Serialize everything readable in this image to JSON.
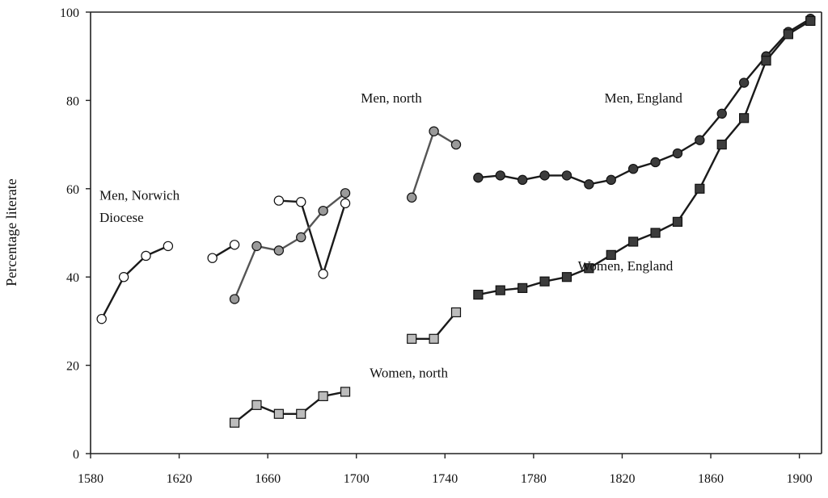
{
  "chart_data": {
    "type": "line",
    "title": "",
    "xlabel": "",
    "ylabel": "Percentage literate",
    "xlim": [
      1580,
      1910
    ],
    "ylim": [
      0,
      100
    ],
    "x_ticks": [
      1580,
      1620,
      1660,
      1700,
      1740,
      1780,
      1820,
      1860,
      1900
    ],
    "y_ticks": [
      0,
      20,
      40,
      60,
      80,
      100
    ],
    "grid": false,
    "legend": "none",
    "series": [
      {
        "name": "Men, Norwich Diocese",
        "marker": "circle",
        "marker_fill": "#ffffff",
        "line_color": "#1a1a1a",
        "segments": [
          [
            [
              1585,
              30.5
            ],
            [
              1595,
              40
            ],
            [
              1605,
              44.8
            ],
            [
              1615,
              47
            ]
          ],
          [
            [
              1635,
              44.3
            ],
            [
              1645,
              47.3
            ]
          ],
          [
            [
              1665,
              57.3
            ],
            [
              1675,
              57
            ],
            [
              1685,
              40.7
            ],
            [
              1695,
              56.7
            ]
          ]
        ]
      },
      {
        "name": "Men, north",
        "marker": "circle",
        "marker_fill": "#9a9a9a",
        "line_color": "#555555",
        "segments": [
          [
            [
              1645,
              35
            ],
            [
              1655,
              47
            ],
            [
              1665,
              46
            ],
            [
              1675,
              49
            ],
            [
              1685,
              55
            ],
            [
              1695,
              59
            ]
          ],
          [
            [
              1725,
              58
            ],
            [
              1735,
              73
            ],
            [
              1745,
              70
            ]
          ]
        ]
      },
      {
        "name": "Women, north",
        "marker": "square",
        "marker_fill": "#bcbcbc",
        "line_color": "#1a1a1a",
        "segments": [
          [
            [
              1645,
              7
            ],
            [
              1655,
              11
            ],
            [
              1665,
              9
            ],
            [
              1675,
              9
            ],
            [
              1685,
              13
            ],
            [
              1695,
              14
            ]
          ],
          [
            [
              1725,
              26
            ],
            [
              1735,
              26
            ],
            [
              1745,
              32
            ]
          ]
        ]
      },
      {
        "name": "Men, England",
        "marker": "circle",
        "marker_fill": "#3c3c3c",
        "line_color": "#1a1a1a",
        "segments": [
          [
            [
              1755,
              62.5
            ],
            [
              1765,
              63
            ],
            [
              1775,
              62
            ],
            [
              1785,
              63
            ],
            [
              1795,
              63
            ],
            [
              1805,
              61
            ],
            [
              1815,
              62
            ],
            [
              1825,
              64.5
            ],
            [
              1835,
              66
            ],
            [
              1845,
              68
            ],
            [
              1855,
              71
            ],
            [
              1865,
              77
            ],
            [
              1875,
              84
            ],
            [
              1885,
              90
            ],
            [
              1895,
              95.5
            ],
            [
              1905,
              98.5
            ]
          ]
        ]
      },
      {
        "name": "Women, England",
        "marker": "square",
        "marker_fill": "#3c3c3c",
        "line_color": "#1a1a1a",
        "segments": [
          [
            [
              1755,
              36
            ],
            [
              1765,
              37
            ],
            [
              1775,
              37.5
            ],
            [
              1785,
              39
            ],
            [
              1795,
              40
            ],
            [
              1805,
              42
            ],
            [
              1815,
              45
            ],
            [
              1825,
              48
            ],
            [
              1835,
              50
            ],
            [
              1845,
              52.5
            ],
            [
              1855,
              60
            ],
            [
              1865,
              70
            ],
            [
              1875,
              76
            ],
            [
              1885,
              89
            ],
            [
              1895,
              95
            ],
            [
              1905,
              98
            ]
          ]
        ]
      }
    ],
    "annotations": [
      {
        "text": "Men, Norwich",
        "x": 1584,
        "y": 57.5
      },
      {
        "text": "Diocese",
        "x": 1584,
        "y": 52.5
      },
      {
        "text": "Men, north",
        "x": 1702,
        "y": 79.5
      },
      {
        "text": "Men, England",
        "x": 1812,
        "y": 79.5
      },
      {
        "text": "Women, England",
        "x": 1800,
        "y": 41.5
      },
      {
        "text": "Women, north",
        "x": 1706,
        "y": 17.3
      }
    ]
  }
}
